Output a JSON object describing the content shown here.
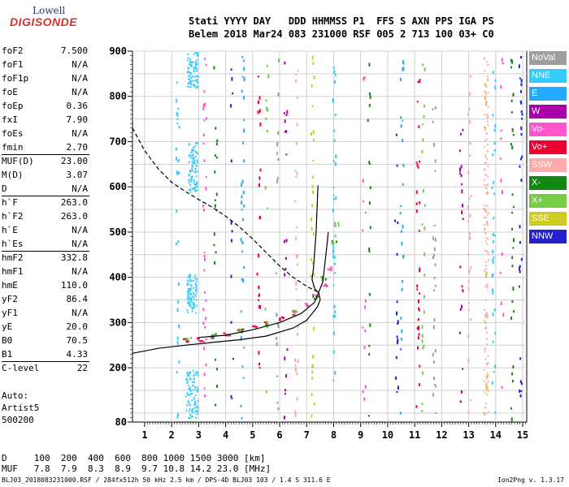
{
  "logo": {
    "line1": "Lowell",
    "line2": "DIGISONDE"
  },
  "header": {
    "row1": "Stati YYYY DAY   DDD HHMMSS P1  FFS S AXN PPS IGA PS",
    "row2": "Belem 2018 Mar24 083 231000 RSF 005 2 713 100 03+ C0"
  },
  "params": [
    {
      "k": "foF2",
      "v": "7.500"
    },
    {
      "k": "foF1",
      "v": "N/A"
    },
    {
      "k": "foF1p",
      "v": "N/A"
    },
    {
      "k": "foE",
      "v": "N/A"
    },
    {
      "k": "foEp",
      "v": "0.36"
    },
    {
      "k": "fxI",
      "v": "7.90"
    },
    {
      "k": "foEs",
      "v": "N/A"
    },
    {
      "k": "fmin",
      "v": "2.70"
    },
    {
      "k": "MUF(D)",
      "v": "23.00"
    },
    {
      "k": "M(D)",
      "v": "3.07"
    },
    {
      "k": "D",
      "v": "N/A"
    },
    {
      "k": "h`F",
      "v": "263.0"
    },
    {
      "k": "h`F2",
      "v": "263.0"
    },
    {
      "k": "h`E",
      "v": "N/A"
    },
    {
      "k": "h`Es",
      "v": "N/A"
    },
    {
      "k": "hmF2",
      "v": "332.8"
    },
    {
      "k": "hmF1",
      "v": "N/A"
    },
    {
      "k": "hmE",
      "v": "110.0"
    },
    {
      "k": "yF2",
      "v": "86.4"
    },
    {
      "k": "yF1",
      "v": "N/A"
    },
    {
      "k": "yE",
      "v": "20.0"
    },
    {
      "k": "B0",
      "v": "70.5"
    },
    {
      "k": "B1",
      "v": "4.33"
    },
    {
      "k": "C-level",
      "v": "22"
    }
  ],
  "auto": {
    "line1": "Auto:",
    "line2": "Artist5",
    "line3": "500200"
  },
  "footer": {
    "row1": "D     100  200  400  600  800 1000 1500 3000 [km]",
    "row2": "MUF   7.8  7.9  8.3  8.9  9.7 10.8 14.2 23.0 [MHz]",
    "file": "BLJ03_2018083231000.RSF / 284fx512h 50 kHz 2.5 km / DPS-4D BLJ03 103 / 1.4 S 311.6 E",
    "version": "Ion2Png v. 1.3.17"
  },
  "legend": [
    {
      "label": "NoVal",
      "color": "#9e9e9e"
    },
    {
      "label": "NNE",
      "color": "#33ccff"
    },
    {
      "label": "E",
      "color": "#22aaff"
    },
    {
      "label": "W",
      "color": "#aa00aa"
    },
    {
      "label": "Vo-",
      "color": "#ff55cc"
    },
    {
      "label": "Vo+",
      "color": "#ee0033"
    },
    {
      "label": "SSW",
      "color": "#ffaaaa"
    },
    {
      "label": "X-",
      "color": "#118811"
    },
    {
      "label": "X+",
      "color": "#77cc44"
    },
    {
      "label": "SSE",
      "color": "#cccc22"
    },
    {
      "label": "NNW",
      "color": "#2222cc"
    }
  ],
  "chart_data": {
    "type": "scatter",
    "xlim": [
      0.55,
      15.15
    ],
    "ylim": [
      80,
      900
    ],
    "x_ticks": [
      1,
      2,
      3,
      4,
      5,
      6,
      7,
      8,
      9,
      10,
      11,
      12,
      13,
      14,
      15
    ],
    "x_tick_labels": [
      "1",
      "2",
      "3",
      "4",
      "5",
      "6",
      "7",
      "8",
      "9",
      "10",
      "11",
      "12",
      "13",
      "14",
      "15"
    ],
    "y_ticks": [
      80,
      200,
      300,
      400,
      500,
      600,
      700,
      800,
      900
    ],
    "y_tick_labels": [
      "80",
      "200",
      "300",
      "400",
      "500",
      "600",
      "700",
      "800",
      "900"
    ],
    "grid": true,
    "echo_trace": [
      [
        2.5,
        262
      ],
      [
        3.0,
        264
      ],
      [
        3.5,
        270
      ],
      [
        4.0,
        276
      ],
      [
        4.5,
        284
      ],
      [
        5.0,
        292
      ],
      [
        5.5,
        300
      ],
      [
        6.0,
        310
      ],
      [
        6.5,
        322
      ],
      [
        7.0,
        340
      ],
      [
        7.3,
        360
      ],
      [
        7.6,
        385
      ],
      [
        7.8,
        420
      ]
    ],
    "x_trace": [
      [
        2.6,
        265
      ],
      [
        3.5,
        272
      ],
      [
        4.5,
        285
      ],
      [
        5.5,
        300
      ],
      [
        6.5,
        325
      ],
      [
        7.3,
        358
      ],
      [
        7.6,
        400
      ],
      [
        8.0,
        480
      ],
      [
        8.1,
        520
      ]
    ],
    "profile_curve": [
      [
        0.55,
        232
      ],
      [
        1.5,
        243
      ],
      [
        2.5,
        250
      ],
      [
        3.5,
        256
      ],
      [
        4.5,
        262
      ],
      [
        5.5,
        270
      ],
      [
        6.5,
        288
      ],
      [
        7.0,
        305
      ],
      [
        7.4,
        335
      ],
      [
        7.5,
        350
      ],
      [
        7.45,
        365
      ],
      [
        7.3,
        375
      ],
      [
        7.2,
        395
      ],
      [
        7.25,
        420
      ],
      [
        7.35,
        500
      ],
      [
        7.42,
        603
      ]
    ],
    "dashed_curve": [
      [
        0.55,
        730
      ],
      [
        1.0,
        680
      ],
      [
        1.5,
        640
      ],
      [
        2.0,
        610
      ],
      [
        2.5,
        590
      ],
      [
        3.0,
        572
      ],
      [
        3.5,
        555
      ],
      [
        4.0,
        535
      ],
      [
        4.5,
        512
      ],
      [
        5.0,
        485
      ],
      [
        5.5,
        455
      ],
      [
        6.0,
        425
      ],
      [
        6.5,
        400
      ],
      [
        7.0,
        380
      ],
      [
        7.4,
        368
      ]
    ],
    "extra_curve": [
      [
        3.0,
        267
      ],
      [
        4.0,
        272
      ],
      [
        5.0,
        284
      ],
      [
        6.0,
        300
      ],
      [
        6.8,
        320
      ],
      [
        7.3,
        345
      ],
      [
        7.6,
        390
      ],
      [
        7.75,
        470
      ],
      [
        7.8,
        500
      ]
    ]
  }
}
